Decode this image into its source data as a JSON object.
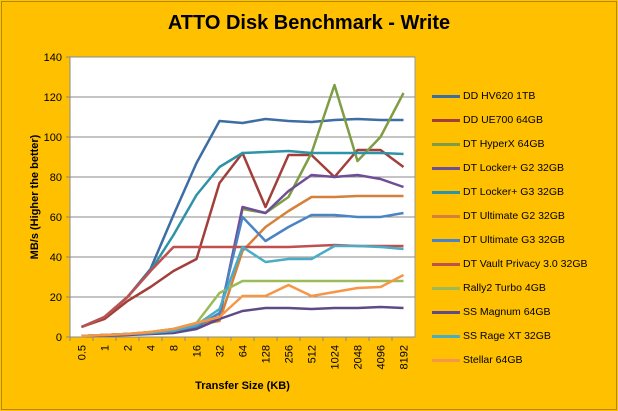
{
  "chart_data": {
    "type": "line",
    "title": "ATTO Disk Benchmark - Write",
    "xlabel": "Transfer Size (KB)",
    "ylabel": "MB/s (Higher the better)",
    "ylim": [
      0,
      140
    ],
    "yticks": [
      0,
      20,
      40,
      60,
      80,
      100,
      120,
      140
    ],
    "grid": true,
    "legend": "right",
    "categories": [
      "0.5",
      "1",
      "2",
      "4",
      "8",
      "16",
      "32",
      "64",
      "128",
      "256",
      "512",
      "1024",
      "2048",
      "4096",
      "8192"
    ],
    "series": [
      {
        "name": "DD HV620 1TB",
        "color": "#3C6DA3",
        "values": [
          5,
          10,
          20,
          34,
          61,
          87,
          108,
          107,
          109,
          108,
          107.5,
          108.5,
          109,
          108.5,
          108.5
        ]
      },
      {
        "name": "DD UE700 64GB",
        "color": "#A23F3B",
        "values": [
          5,
          9,
          18,
          25,
          33,
          39,
          77,
          92,
          65,
          91,
          91,
          80,
          93.5,
          93.5,
          85
        ]
      },
      {
        "name": "DT HyperX 64GB",
        "color": "#7F9D45",
        "values": [
          0.5,
          1,
          1.5,
          2.5,
          4,
          7,
          10,
          64,
          62,
          70,
          92,
          126,
          88,
          100,
          122
        ]
      },
      {
        "name": "DT Locker+ G2 32GB",
        "color": "#6E4E97",
        "values": [
          0.5,
          1,
          1.5,
          2,
          3,
          5,
          10,
          65,
          62,
          73,
          81,
          80,
          81,
          79,
          75
        ]
      },
      {
        "name": "DT Locker+ G3 32GB",
        "color": "#2F93A7",
        "values": [
          5,
          10,
          20,
          33,
          51,
          71,
          85,
          92,
          92.5,
          93,
          92,
          92,
          92,
          92,
          91.5
        ]
      },
      {
        "name": "DT Ultimate G2 32GB",
        "color": "#D6803A",
        "values": [
          0.5,
          1,
          1.5,
          2,
          3,
          6,
          8,
          43,
          55,
          63,
          70,
          70,
          70.5,
          70.5,
          70.5
        ]
      },
      {
        "name": "DT Ultimate G3 32GB",
        "color": "#4A84C6",
        "values": [
          0.5,
          1,
          1.5,
          2,
          3,
          5,
          12,
          60,
          48,
          55,
          61,
          61,
          60,
          60,
          62
        ]
      },
      {
        "name": "DT Vault Privacy 3.0 32GB",
        "color": "#C0504D",
        "values": [
          5,
          10,
          20,
          33,
          45,
          45,
          45,
          45,
          45,
          45,
          45.5,
          46,
          45.5,
          45.5,
          45.5
        ]
      },
      {
        "name": "Rally2 Turbo 4GB",
        "color": "#9BBB59",
        "values": [
          0.5,
          1,
          1.5,
          2.5,
          4,
          7,
          22,
          28,
          28,
          28,
          28,
          28,
          28,
          28,
          28
        ]
      },
      {
        "name": "SS Magnum 64GB",
        "color": "#5F4A86",
        "values": [
          0.5,
          0.7,
          1,
          1.5,
          2,
          4,
          9,
          13,
          14.5,
          14.5,
          14,
          14.5,
          14.5,
          15,
          14.5
        ]
      },
      {
        "name": "SS Rage XT 32GB",
        "color": "#4BACC6",
        "values": [
          0.5,
          1,
          1.5,
          2,
          3,
          6,
          14,
          45,
          37.5,
          39,
          39,
          45.5,
          45.5,
          45,
          44
        ]
      },
      {
        "name": "Stellar 64GB",
        "color": "#F79646",
        "values": [
          0.5,
          1,
          1.5,
          2.5,
          4,
          7,
          10,
          20.5,
          20.5,
          26,
          20.5,
          22.5,
          24.5,
          25,
          31
        ]
      }
    ]
  }
}
